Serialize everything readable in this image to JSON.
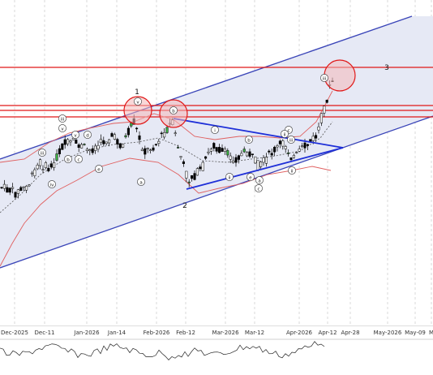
{
  "chart_data": {
    "type": "candlestick",
    "title": "",
    "x_ticks": [
      "Dec-2025",
      "Dec-11",
      "Jan-2026",
      "Jan-14",
      "Feb-2026",
      "Feb-12",
      "Mar-2026",
      "Mar-12",
      "Apr-2026",
      "Apr-12",
      "Apr-28",
      "May-2026",
      "May-09",
      "M"
    ],
    "wave_labels": [
      "1",
      "2",
      "3"
    ],
    "sub_wave_labels": [
      "iii",
      "v",
      "iv",
      "iii",
      "v",
      "b",
      "d",
      "e",
      "c",
      "a",
      "b",
      "v",
      "ii",
      "c",
      "i",
      "b",
      "a",
      "e",
      "ii",
      "c",
      "iii",
      "ii",
      "iii"
    ],
    "colors": {
      "channel_fill": "#e6e9f5",
      "channel_line": "#3a45b8",
      "resistance_line": "#e01818",
      "circle_fill": "#f4b8b8",
      "circle_stroke": "#e01818",
      "bollinger": "#e06060",
      "moving_average": "#555555",
      "bull_candle": "#ffffff",
      "bear_candle": "#000000",
      "highlight_candle": "#3cb043",
      "triangle_line": "#1e2fd8"
    },
    "horizontal_levels": 4,
    "indicator_panel": "momentum oscillator"
  }
}
